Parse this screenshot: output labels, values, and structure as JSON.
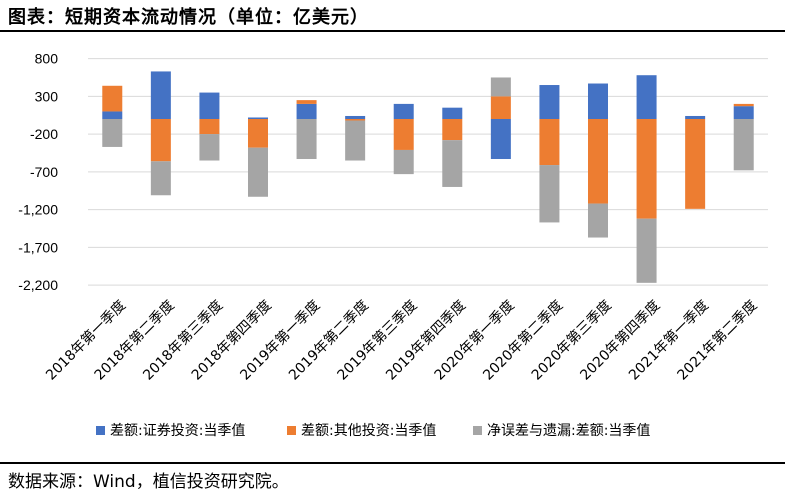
{
  "header": {
    "title": "图表：短期资本流动情况（单位：亿美元）"
  },
  "footer": {
    "source": "数据来源：Wind，植信投资研究院。"
  },
  "chart_data": {
    "type": "bar",
    "stacked": true,
    "title": "图表：短期资本流动情况（单位：亿美元）",
    "xlabel": "",
    "ylabel": "",
    "ylim": [
      -2200,
      800
    ],
    "yticks": [
      800,
      300,
      -200,
      -700,
      -1200,
      -1700,
      -2200
    ],
    "ytick_labels": [
      "800",
      "300",
      "-200",
      "-700",
      "-1,200",
      "-1,700",
      "-2,200"
    ],
    "grid": true,
    "legend_position": "bottom",
    "categories": [
      "2018年第一季度",
      "2018年第二季度",
      "2018年第三季度",
      "2018年第四季度",
      "2019年第一季度",
      "2019年第二季度",
      "2019年第三季度",
      "2019年第四季度",
      "2020年第一季度",
      "2020年第二季度",
      "2020年第三季度",
      "2020年第四季度",
      "2021年第一季度",
      "2021年第二季度"
    ],
    "series": [
      {
        "name": "差额:证券投资:当季值",
        "color": "#4472c4",
        "values": [
          100,
          630,
          350,
          20,
          200,
          40,
          200,
          150,
          -530,
          450,
          470,
          580,
          40,
          170
        ]
      },
      {
        "name": "差额:其他投资:当季值",
        "color": "#ed7d31",
        "values": [
          340,
          -560,
          -200,
          -380,
          50,
          -20,
          -410,
          -280,
          300,
          -610,
          -1120,
          -1320,
          -1190,
          30
        ]
      },
      {
        "name": "净误差与遗漏:差额:当季值",
        "color": "#a5a5a5",
        "values": [
          -370,
          -450,
          -350,
          -650,
          -530,
          -530,
          -320,
          -620,
          250,
          -760,
          -450,
          -850,
          0,
          -680
        ]
      }
    ]
  }
}
